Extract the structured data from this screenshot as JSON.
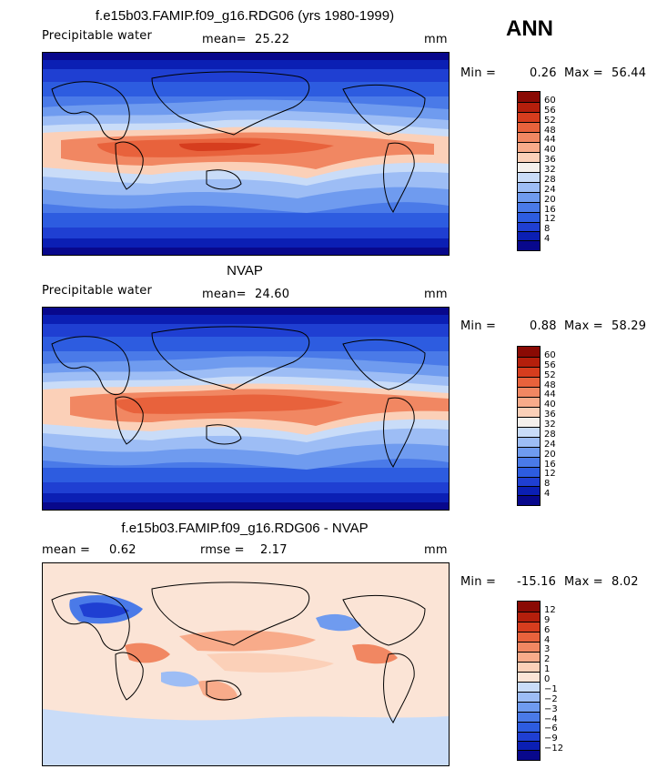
{
  "season": "ANN",
  "panels": [
    {
      "title": "f.e15b03.FAMIP.f09_g16.RDG06 (yrs 1980-1999)",
      "left_label": "Precipitable water",
      "mean_label": "mean=",
      "mean_value": "25.22",
      "rmse_label": "",
      "rmse_value": "",
      "units": "mm",
      "min_label": "Min =",
      "min_value": "0.26",
      "max_label": "Max =",
      "max_value": "56.44"
    },
    {
      "title": "NVAP",
      "left_label": "Precipitable water",
      "mean_label": "mean=",
      "mean_value": "24.60",
      "rmse_label": "",
      "rmse_value": "",
      "units": "mm",
      "min_label": "Min =",
      "min_value": "0.88",
      "max_label": "Max =",
      "max_value": "58.29"
    },
    {
      "title": "f.e15b03.FAMIP.f09_g16.RDG06 - NVAP",
      "left_label": "",
      "mean_label": "mean =",
      "mean_value": "0.62",
      "rmse_label": "rmse =",
      "rmse_value": "2.17",
      "units": "mm",
      "min_label": "Min =",
      "min_value": "-15.16",
      "max_label": "Max =",
      "max_value": "8.02"
    }
  ],
  "chart_data": [
    {
      "type": "heatmap",
      "title": "f.e15b03.FAMIP.f09_g16.RDG06 (yrs 1980-1999)",
      "variable": "Precipitable water",
      "units": "mm",
      "mean": 25.22,
      "min": 0.26,
      "max": 56.44,
      "colorbar_levels": [
        4,
        8,
        12,
        16,
        20,
        24,
        28,
        32,
        36,
        40,
        44,
        48,
        52,
        56,
        60
      ],
      "colorbar_colors": [
        "#08088c",
        "#0b1fb4",
        "#1f3fd2",
        "#2d5ce0",
        "#4a7ae8",
        "#6f9bef",
        "#9dbdf5",
        "#c9dcf8",
        "#f4f0ec",
        "#fbd0b8",
        "#f8ab8a",
        "#f18762",
        "#e8623c",
        "#d63d1e",
        "#b41f0c",
        "#8a0a04"
      ],
      "x": "longitude",
      "y": "latitude"
    },
    {
      "type": "heatmap",
      "title": "NVAP",
      "variable": "Precipitable water",
      "units": "mm",
      "mean": 24.6,
      "min": 0.88,
      "max": 58.29,
      "colorbar_levels": [
        4,
        8,
        12,
        16,
        20,
        24,
        28,
        32,
        36,
        40,
        44,
        48,
        52,
        56,
        60
      ],
      "colorbar_colors": [
        "#08088c",
        "#0b1fb4",
        "#1f3fd2",
        "#2d5ce0",
        "#4a7ae8",
        "#6f9bef",
        "#9dbdf5",
        "#c9dcf8",
        "#f4f0ec",
        "#fbd0b8",
        "#f8ab8a",
        "#f18762",
        "#e8623c",
        "#d63d1e",
        "#b41f0c",
        "#8a0a04"
      ],
      "x": "longitude",
      "y": "latitude"
    },
    {
      "type": "heatmap",
      "title": "f.e15b03.FAMIP.f09_g16.RDG06 - NVAP",
      "units": "mm",
      "mean": 0.62,
      "rmse": 2.17,
      "min": -15.16,
      "max": 8.02,
      "colorbar_levels": [
        -12,
        -9,
        -6,
        -4,
        -3,
        -2,
        -1,
        0,
        1,
        2,
        3,
        4,
        6,
        9,
        12
      ],
      "colorbar_colors": [
        "#08088c",
        "#0b1fb4",
        "#1f3fd2",
        "#2d5ce0",
        "#4a7ae8",
        "#6f9bef",
        "#9dbdf5",
        "#c9dcf8",
        "#fbe4d6",
        "#fbd0b8",
        "#f8ab8a",
        "#f18762",
        "#e8623c",
        "#d63d1e",
        "#b41f0c",
        "#8a0a04"
      ],
      "x": "longitude",
      "y": "latitude"
    }
  ]
}
